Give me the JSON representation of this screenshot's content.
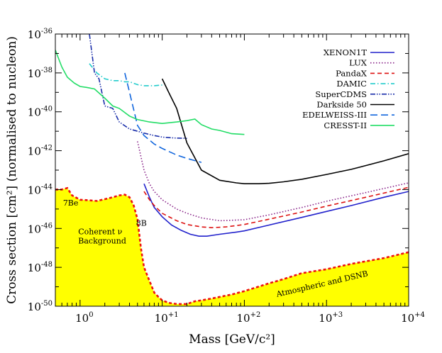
{
  "chart_data": {
    "type": "line",
    "xscale": "log",
    "yscale": "log",
    "xlim": [
      0.5,
      10000
    ],
    "ylim": [
      1e-50,
      1e-36
    ],
    "xlabel": "Mass [GeV/c²]",
    "ylabel": "Cross section [cm²] (normalised to nucleon)",
    "xticks": [
      {
        "value": 1,
        "base": "10",
        "exp": "0"
      },
      {
        "value": 10,
        "base": "10",
        "exp": "+1"
      },
      {
        "value": 100,
        "base": "10",
        "exp": "+2"
      },
      {
        "value": 1000,
        "base": "10",
        "exp": "+3"
      },
      {
        "value": 10000,
        "base": "10",
        "exp": "+4"
      }
    ],
    "yticks": [
      {
        "value": 1e-36,
        "base": "10",
        "exp": "-36"
      },
      {
        "value": 1e-38,
        "base": "10",
        "exp": "-38"
      },
      {
        "value": 1e-40,
        "base": "10",
        "exp": "-40"
      },
      {
        "value": 1e-42,
        "base": "10",
        "exp": "-42"
      },
      {
        "value": 1e-44,
        "base": "10",
        "exp": "-44"
      },
      {
        "value": 1e-46,
        "base": "10",
        "exp": "-46"
      },
      {
        "value": 1e-48,
        "base": "10",
        "exp": "-48"
      },
      {
        "value": 1e-50,
        "base": "10",
        "exp": "-50"
      }
    ],
    "legend_position": "top-right",
    "series": [
      {
        "name": "XENON1T",
        "color": "#2222cc",
        "dash": "solid",
        "x": [
          6,
          7,
          8,
          10,
          13,
          17,
          22,
          28,
          35,
          50,
          80,
          100,
          200,
          500,
          1000,
          2000,
          5000,
          10000
        ],
        "y": [
          2e-44,
          4e-45,
          1.2e-45,
          4e-46,
          1.5e-46,
          8e-47,
          5e-47,
          4e-47,
          4e-47,
          5e-47,
          6.5e-47,
          7.5e-47,
          1.5e-46,
          3.7e-46,
          7.5e-46,
          1.5e-45,
          4e-45,
          8e-45
        ]
      },
      {
        "name": "LUX",
        "color": "#882288",
        "dash": "dot",
        "x": [
          5,
          6,
          7,
          8,
          10,
          15,
          20,
          30,
          50,
          100,
          200,
          500,
          1000,
          3000,
          10000
        ],
        "y": [
          3e-42,
          1e-43,
          2e-44,
          8e-45,
          3e-45,
          1e-45,
          6e-46,
          3.5e-46,
          2.5e-46,
          2.8e-46,
          5e-46,
          1.2e-45,
          2.5e-45,
          7e-45,
          2.2e-44
        ]
      },
      {
        "name": "PandaX",
        "color": "#dd1111",
        "dash": "dash",
        "x": [
          6,
          7,
          8,
          10,
          15,
          20,
          30,
          40,
          60,
          100,
          200,
          500,
          1000,
          3000,
          10000
        ],
        "y": [
          8e-45,
          3e-45,
          1.5e-45,
          6e-46,
          2.5e-46,
          1.6e-46,
          1.2e-46,
          1.1e-46,
          1.2e-46,
          1.6e-46,
          3e-46,
          7e-46,
          1.4e-45,
          4e-45,
          1.3e-44
        ]
      },
      {
        "name": "DAMIC",
        "color": "#22cccc",
        "dash": "dashdot",
        "x": [
          1.3,
          1.6,
          2,
          2.5,
          3,
          3.5,
          4,
          5,
          6,
          8,
          10
        ],
        "y": [
          3e-38,
          1e-38,
          5e-39,
          4e-39,
          4e-39,
          3.5e-39,
          3.5e-39,
          2.5e-39,
          2.2e-39,
          2.2e-39,
          2.4e-39
        ]
      },
      {
        "name": "SuperCDMS",
        "color": "#1a2eaa",
        "dash": "dashdotdot",
        "x": [
          1.3,
          1.5,
          1.7,
          2,
          2.5,
          3,
          4,
          5,
          6,
          8,
          10,
          14,
          20
        ],
        "y": [
          1e-36,
          1e-38,
          5e-39,
          2e-40,
          1.5e-40,
          3e-41,
          1.3e-41,
          1e-41,
          8e-42,
          6e-42,
          5e-42,
          4.5e-42,
          4.3e-42
        ]
      },
      {
        "name": "Darkside 50",
        "color": "#000000",
        "dash": "solid",
        "x": [
          10,
          12,
          15,
          20,
          30,
          50,
          80,
          100,
          150,
          200,
          300,
          500,
          1000,
          2000,
          5000,
          10000
        ],
        "y": [
          5e-39,
          1e-39,
          1.5e-40,
          2.5e-42,
          1e-43,
          3e-44,
          2.2e-44,
          2e-44,
          2e-44,
          2.1e-44,
          2.5e-44,
          3.4e-44,
          6e-44,
          1.1e-43,
          3e-43,
          7e-43
        ]
      },
      {
        "name": "EDELWEISS-III",
        "color": "#1166dd",
        "dash": "longdash",
        "x": [
          3.5,
          4,
          5,
          6,
          8,
          10,
          15,
          20,
          30
        ],
        "y": [
          1e-38,
          1e-39,
          2e-41,
          6e-42,
          2.2e-42,
          1.3e-42,
          6e-43,
          4e-43,
          2.5e-43
        ]
      },
      {
        "name": "CRESST-II",
        "color": "#22dd66",
        "dash": "solid",
        "x": [
          0.5,
          0.6,
          0.7,
          0.85,
          1,
          1.2,
          1.5,
          2,
          2.5,
          3,
          4,
          5,
          7,
          10,
          15,
          20,
          25,
          30,
          40,
          50,
          70,
          100
        ],
        "y": [
          1.5e-37,
          2e-38,
          6e-39,
          3e-39,
          2e-39,
          1.8e-39,
          1.5e-39,
          5e-40,
          2e-40,
          1.5e-40,
          6e-41,
          4e-41,
          3e-41,
          2.5e-41,
          3e-41,
          3.5e-41,
          4.2e-41,
          2.2e-41,
          1.3e-41,
          1.1e-41,
          7.5e-42,
          6.8e-42
        ]
      }
    ],
    "neutrino_floor": {
      "name": "Coherent ν Background",
      "line_color": "#ee1111",
      "fill_color": "#ffff00",
      "x": [
        0.5,
        0.6,
        0.7,
        0.8,
        1,
        1.3,
        1.6,
        2,
        2.5,
        3,
        3.5,
        4,
        4.5,
        5,
        5.5,
        6,
        7,
        8,
        9,
        10,
        12,
        15,
        20,
        25,
        30,
        40,
        50,
        70,
        100,
        200,
        300,
        500,
        1000,
        2000,
        5000,
        10000
      ],
      "y": [
        1e-44,
        1e-44,
        1.2e-44,
        5e-45,
        3e-45,
        2.8e-45,
        2.6e-45,
        3.2e-45,
        4e-45,
        5e-45,
        5.5e-45,
        4e-45,
        1.5e-45,
        3e-46,
        1e-47,
        1e-48,
        2e-49,
        5e-50,
        3e-50,
        2e-50,
        1.5e-50,
        1.3e-50,
        1.3e-50,
        1.8e-50,
        2e-50,
        2.5e-50,
        3e-50,
        4e-50,
        6e-50,
        1.5e-49,
        2.5e-49,
        5e-49,
        8e-49,
        1.5e-48,
        3e-48,
        6e-48
      ]
    },
    "annotations": [
      {
        "id": "be7",
        "text": "7Be",
        "x": 0.62,
        "y": 1.5e-45
      },
      {
        "id": "b8",
        "text": "8B",
        "x": 4.8,
        "y": 1.4e-46
      },
      {
        "id": "coherent1",
        "text": "Coherent ν",
        "x": 0.95,
        "y": 5e-47
      },
      {
        "id": "coherent2",
        "text": "Background",
        "x": 0.95,
        "y": 1.7e-47
      },
      {
        "id": "atmo",
        "text": "Atmospheric and DSNB",
        "x": 250,
        "y": 3e-50
      }
    ]
  }
}
